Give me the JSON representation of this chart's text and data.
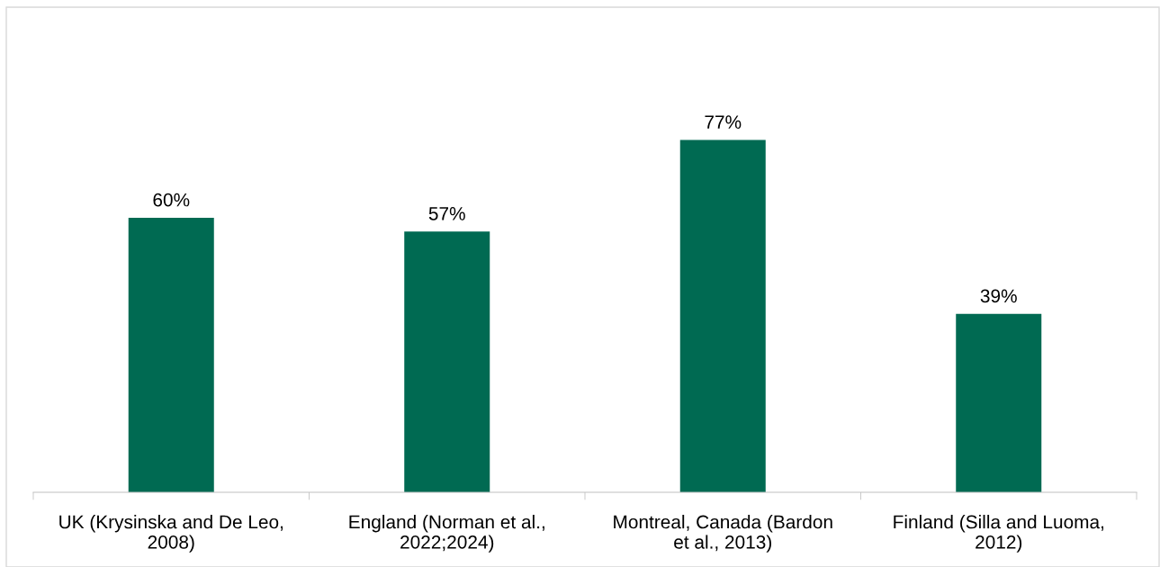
{
  "chart_data": {
    "type": "bar",
    "categories": [
      "UK (Krysinska and De Leo, 2008)",
      "England (Norman et al., 2022;2024)",
      "Montreal, Canada (Bardon et al., 2013)",
      "Finland (Silla and Luoma, 2012)"
    ],
    "values": [
      60,
      57,
      77,
      39
    ],
    "value_labels": [
      "60%",
      "57%",
      "77%",
      "39%"
    ],
    "color": "#006a52",
    "tick_labels": "x",
    "grid": false,
    "legend": false
  }
}
